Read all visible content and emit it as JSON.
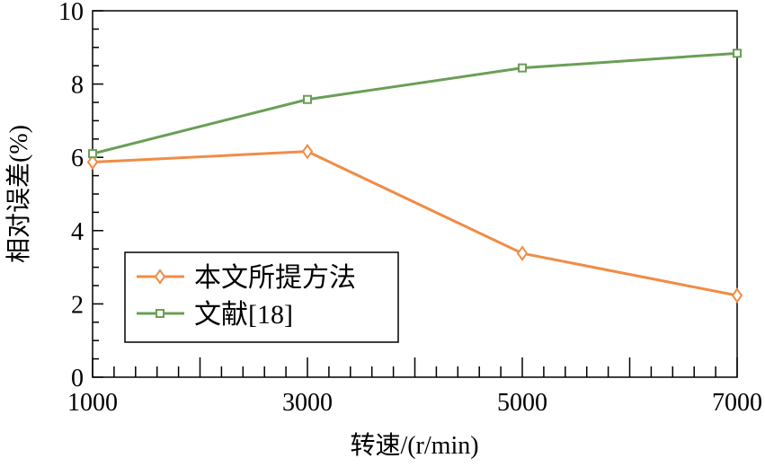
{
  "chart_data": {
    "type": "line",
    "title": "",
    "xlabel": "转速/(r/min)",
    "ylabel": "相对误差(%)",
    "x": [
      1000,
      3000,
      5000,
      7000
    ],
    "xlim": [
      1000,
      7000
    ],
    "ylim": [
      0,
      10
    ],
    "xticks": [
      1000,
      3000,
      5000,
      7000
    ],
    "xtick_labels": [
      "1000",
      "3000",
      "5000",
      "7000"
    ],
    "yticks": [
      0,
      2,
      4,
      6,
      8,
      10
    ],
    "ytick_labels": [
      "0",
      "2",
      "4",
      "6",
      "8",
      "10"
    ],
    "grid": false,
    "legend_placement": "lower-left",
    "series": [
      {
        "name": "本文所提方法",
        "values": [
          5.87,
          6.16,
          3.38,
          2.23
        ],
        "color": "#f08c46",
        "marker": "diamond"
      },
      {
        "name": "文献[18]",
        "values": [
          6.1,
          7.58,
          8.44,
          8.84
        ],
        "color": "#6a9f56",
        "marker": "square"
      }
    ]
  }
}
